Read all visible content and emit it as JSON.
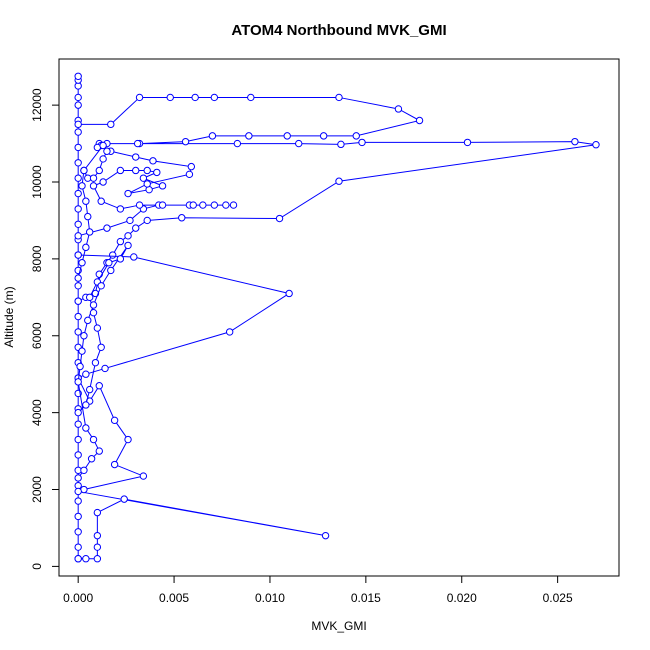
{
  "chart_data": {
    "type": "line",
    "title": "ATOM4 Northbound MVK_GMI",
    "xlabel": "MVK_GMI",
    "ylabel": "Altitude (m)",
    "xlim": [
      -0.001,
      0.0282
    ],
    "ylim": [
      -250,
      13200
    ],
    "xticks": [
      0,
      0.005,
      0.01,
      0.015,
      0.02,
      0.025
    ],
    "xtick_labels": [
      "0.000",
      "0.005",
      "0.010",
      "0.015",
      "0.020",
      "0.025"
    ],
    "yticks": [
      0,
      2000,
      4000,
      6000,
      8000,
      10000,
      12000
    ],
    "ytick_labels": [
      "0",
      "2000",
      "4000",
      "6000",
      "8000",
      "10000",
      "12000"
    ],
    "grid": false,
    "series": [
      {
        "color": "#0000ff",
        "marker": "open-circle",
        "points": [
          [
            0.0,
            200
          ],
          [
            0.0,
            500
          ],
          [
            0.0,
            900
          ],
          [
            0.0,
            1300
          ],
          [
            0.0,
            1700
          ],
          [
            0.0,
            2100
          ],
          [
            0.0,
            2500
          ],
          [
            0.0,
            2900
          ],
          [
            0.0,
            3300
          ],
          [
            0.0,
            3700
          ],
          [
            0.0,
            4100
          ],
          [
            0.0,
            4500
          ],
          [
            0.0,
            4900
          ],
          [
            0.0,
            5300
          ],
          [
            0.0,
            5700
          ],
          [
            0.0,
            6100
          ],
          [
            0.0,
            6500
          ],
          [
            0.0,
            6900
          ],
          [
            0.0,
            7300
          ],
          [
            0.0,
            7700
          ],
          [
            0.0,
            8100
          ],
          [
            0.0,
            8500
          ],
          [
            0.0,
            8900
          ],
          [
            0.0,
            9300
          ],
          [
            0.0,
            9700
          ],
          [
            0.0,
            10100
          ],
          [
            0.0,
            10500
          ],
          [
            0.0,
            10900
          ],
          [
            0.0,
            11300
          ],
          [
            0.0,
            11600
          ],
          [
            0.0,
            12000
          ],
          [
            0.0,
            12200
          ],
          [
            0.0,
            12500
          ],
          [
            0.0,
            12650
          ],
          [
            0.0,
            12750
          ],
          [
            0.0,
            11500
          ],
          [
            0.0017,
            11500
          ],
          [
            0.0032,
            12200
          ],
          [
            0.0048,
            12200
          ],
          [
            0.0061,
            12200
          ],
          [
            0.0071,
            12200
          ],
          [
            0.009,
            12200
          ],
          [
            0.0136,
            12200
          ],
          [
            0.0167,
            11900
          ],
          [
            0.0178,
            11600
          ],
          [
            0.0145,
            11200
          ],
          [
            0.0128,
            11200
          ],
          [
            0.0109,
            11200
          ],
          [
            0.0089,
            11200
          ],
          [
            0.007,
            11200
          ],
          [
            0.0056,
            11050
          ],
          [
            0.0032,
            11000
          ],
          [
            0.0015,
            11000
          ],
          [
            0.0011,
            10950
          ],
          [
            0.0011,
            11000
          ],
          [
            0.0031,
            11000
          ],
          [
            0.0083,
            11000
          ],
          [
            0.0115,
            11000
          ],
          [
            0.0137,
            10980
          ],
          [
            0.0148,
            11030
          ],
          [
            0.0203,
            11030
          ],
          [
            0.0259,
            11050
          ],
          [
            0.027,
            10970
          ],
          [
            0.0136,
            10020
          ],
          [
            0.0105,
            9050
          ],
          [
            0.0054,
            9070
          ],
          [
            0.0036,
            9000
          ],
          [
            0.003,
            8800
          ],
          [
            0.0026,
            8600
          ],
          [
            0.0022,
            8450
          ],
          [
            0.0018,
            8100
          ],
          [
            0.0015,
            7900
          ],
          [
            0.0011,
            7600
          ],
          [
            0.0009,
            7100
          ],
          [
            0.0004,
            7000
          ],
          [
            0.0,
            6900
          ]
        ]
      },
      {
        "color": "#0000ff",
        "marker": "open-circle",
        "points": [
          [
            0.0,
            8100
          ],
          [
            0.0029,
            8050
          ],
          [
            0.011,
            7100
          ],
          [
            0.0079,
            6100
          ],
          [
            0.0014,
            5150
          ],
          [
            0.0004,
            5000
          ],
          [
            0.0,
            4900
          ],
          [
            0.0006,
            4300
          ],
          [
            0.0011,
            4700
          ],
          [
            0.0019,
            3800
          ],
          [
            0.0026,
            3300
          ],
          [
            0.0019,
            2650
          ],
          [
            0.0034,
            2350
          ],
          [
            0.0003,
            2000
          ],
          [
            0.0,
            1950
          ],
          [
            0.0129,
            800
          ],
          [
            0.0024,
            1750
          ],
          [
            0.001,
            1400
          ],
          [
            0.001,
            800
          ],
          [
            0.001,
            500
          ],
          [
            0.001,
            200
          ],
          [
            0.0004,
            200
          ],
          [
            0.0,
            200
          ]
        ]
      },
      {
        "color": "#0000ff",
        "marker": "open-circle",
        "points": [
          [
            0.0,
            8600
          ],
          [
            0.0015,
            8800
          ],
          [
            0.0027,
            9000
          ],
          [
            0.0034,
            9300
          ],
          [
            0.0042,
            9400
          ],
          [
            0.0058,
            9400
          ],
          [
            0.0065,
            9400
          ],
          [
            0.0071,
            9400
          ],
          [
            0.0077,
            9400
          ],
          [
            0.0081,
            9400
          ],
          [
            0.006,
            9400
          ],
          [
            0.0044,
            9400
          ],
          [
            0.0032,
            9400
          ],
          [
            0.0022,
            9300
          ],
          [
            0.0012,
            9500
          ],
          [
            0.0008,
            9900
          ],
          [
            0.0013,
            10000
          ],
          [
            0.0022,
            10300
          ],
          [
            0.003,
            10300
          ],
          [
            0.0036,
            10300
          ],
          [
            0.0041,
            10250
          ],
          [
            0.0034,
            10100
          ],
          [
            0.0044,
            9900
          ],
          [
            0.0037,
            9800
          ],
          [
            0.0026,
            9700
          ],
          [
            0.0036,
            9950
          ],
          [
            0.0058,
            10200
          ],
          [
            0.0059,
            10400
          ],
          [
            0.0039,
            10550
          ],
          [
            0.003,
            10650
          ],
          [
            0.0017,
            10800
          ],
          [
            0.0012,
            10950
          ],
          [
            0.001,
            10900
          ]
        ]
      },
      {
        "color": "#0000ff",
        "marker": "open-circle",
        "points": [
          [
            0.0,
            4000
          ],
          [
            0.0004,
            4200
          ],
          [
            0.0006,
            4600
          ],
          [
            0.0009,
            5300
          ],
          [
            0.0012,
            5700
          ],
          [
            0.001,
            6200
          ],
          [
            0.0008,
            6600
          ],
          [
            0.0006,
            7000
          ],
          [
            0.001,
            7400
          ],
          [
            0.0016,
            7900
          ],
          [
            0.0022,
            8000
          ],
          [
            0.0026,
            8350
          ],
          [
            0.0017,
            7700
          ],
          [
            0.0012,
            7300
          ],
          [
            0.0008,
            6800
          ],
          [
            0.0005,
            6400
          ],
          [
            0.0003,
            6000
          ],
          [
            0.0002,
            5600
          ],
          [
            0.0001,
            5200
          ],
          [
            0.0,
            4800
          ],
          [
            0.0004,
            3600
          ],
          [
            0.0008,
            3300
          ],
          [
            0.0011,
            3000
          ],
          [
            0.0007,
            2800
          ],
          [
            0.0003,
            2500
          ],
          [
            0.0,
            2300
          ]
        ]
      },
      {
        "color": "#0000ff",
        "marker": "open-circle",
        "points": [
          [
            0.0003,
            10300
          ],
          [
            0.0005,
            10100
          ],
          [
            0.0008,
            10100
          ],
          [
            0.0011,
            10300
          ],
          [
            0.0013,
            10600
          ],
          [
            0.0015,
            10800
          ],
          [
            0.0013,
            10950
          ],
          [
            0.0003,
            10300
          ],
          [
            0.0002,
            9900
          ],
          [
            0.0004,
            9500
          ],
          [
            0.0005,
            9100
          ],
          [
            0.0006,
            8700
          ],
          [
            0.0004,
            8300
          ],
          [
            0.0002,
            7900
          ],
          [
            0.0,
            7500
          ]
        ]
      }
    ]
  }
}
